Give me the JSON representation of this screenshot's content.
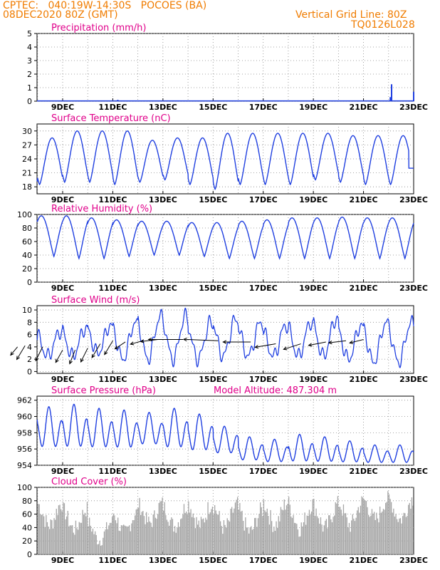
{
  "header": {
    "line1": "CPTEC:   040:19W-14:30S   POCOES (BA)",
    "line2": "08DEC2020 80Z (GMT)",
    "right1": "Vertical Grid Line: 80Z",
    "right2": "TQ0126L028",
    "color": "#f07c00"
  },
  "colors": {
    "title": "#e0008a",
    "series": "#1f3fe0",
    "cloud": "#a6a6a6",
    "vector": "#000000"
  },
  "chart_data": [
    {
      "type": "bar",
      "title": "Precipitation (mm/h)",
      "ylim": [
        0,
        5
      ],
      "yticks": [
        "0",
        "1",
        "2",
        "3",
        "4",
        "5"
      ],
      "xticks": [
        "9DEC",
        "11DEC",
        "13DEC",
        "15DEC",
        "17DEC",
        "19DEC",
        "21DEC",
        "23DEC"
      ],
      "grid": true,
      "x": [
        3.2,
        3.35,
        14.07,
        14.12,
        15.0
      ],
      "values": [
        0.1,
        0.05,
        0.3,
        1.25,
        0.7
      ]
    },
    {
      "type": "line",
      "title": "Surface Temperature (nC)",
      "ylim": [
        16.5,
        31.5
      ],
      "yticks": [
        "18",
        "21",
        "24",
        "27",
        "30"
      ],
      "xticks": [
        "9DEC",
        "11DEC",
        "13DEC",
        "15DEC",
        "17DEC",
        "19DEC",
        "21DEC",
        "23DEC"
      ],
      "grid": true,
      "daily_min": [
        17.2,
        18.5,
        19.0,
        19.0,
        18.5,
        19.0,
        19.5,
        18.5,
        17.5,
        18.5,
        18.5,
        18.5,
        19.5,
        19.0,
        18.5
      ],
      "daily_max": [
        29.0,
        28.5,
        30.0,
        30.0,
        30.0,
        28.0,
        28.5,
        28.5,
        29.5,
        29.5,
        29.5,
        29.5,
        29.5,
        29.0,
        29.0
      ],
      "end_value": 22.0
    },
    {
      "type": "line",
      "title": "Relative Humidity (%)",
      "ylim": [
        0,
        100
      ],
      "yticks": [
        "0",
        "20",
        "40",
        "60",
        "80",
        "100"
      ],
      "xticks": [
        "9DEC",
        "11DEC",
        "13DEC",
        "15DEC",
        "17DEC",
        "19DEC",
        "21DEC",
        "23DEC"
      ],
      "grid": true,
      "daily_max": [
        100,
        98,
        98,
        95,
        92,
        90,
        90,
        88,
        88,
        90,
        92,
        95,
        95,
        96,
        95
      ],
      "daily_min": [
        35,
        38,
        35,
        35,
        38,
        40,
        40,
        38,
        35,
        35,
        35,
        35,
        35,
        35,
        35
      ],
      "end_value": 85
    },
    {
      "type": "line",
      "title": "Surface Wind (m/s)",
      "ylim": [
        -0.3,
        10.7
      ],
      "yticks": [
        "0",
        "2",
        "4",
        "6",
        "8",
        "10"
      ],
      "xticks": [
        "9DEC",
        "11DEC",
        "13DEC",
        "15DEC",
        "17DEC",
        "19DEC",
        "21DEC",
        "23DEC"
      ],
      "grid": true,
      "daily_max": [
        6.0,
        6.5,
        7.0,
        7.5,
        8.0,
        9.0,
        9.0,
        8.0,
        8.5,
        8.0,
        7.5,
        8.0,
        8.5,
        7.5,
        8.0
      ],
      "daily_min": [
        1.5,
        2.5,
        2.5,
        3.0,
        2.0,
        2.0,
        2.0,
        2.0,
        2.5,
        2.5,
        2.5,
        2.5,
        2.5,
        2.0,
        1.5
      ],
      "vectors": {
        "x": [
          0.2,
          0.5,
          1.2,
          2.0,
          2.5,
          3.0,
          3.5,
          4.0,
          4.5,
          5.2,
          5.8,
          6.8,
          8.2,
          9.5,
          10.5,
          11.5,
          12.5,
          13.3,
          14.0
        ],
        "y": [
          4.0,
          4.2,
          4.0,
          3.5,
          3.5,
          3.8,
          4.5,
          5.0,
          4.8,
          5.0,
          5.2,
          5.2,
          5.0,
          4.8,
          4.5,
          4.5,
          4.8,
          5.0,
          5.2
        ],
        "u": [
          -1.0,
          -1.2,
          -1.0,
          -1.0,
          -0.8,
          -1.0,
          -1.2,
          -1.2,
          -1.5,
          -1.8,
          -2.5,
          -5.0,
          -5.0,
          -4.0,
          -3.0,
          -2.5,
          -2.5,
          -2.5,
          -2.0
        ],
        "v": [
          -1.2,
          -2.0,
          -2.0,
          -1.8,
          -2.0,
          -2.0,
          -2.0,
          -2.0,
          -1.0,
          -0.5,
          -0.3,
          0.0,
          0.2,
          0.0,
          -0.5,
          -0.8,
          -0.5,
          -0.3,
          -0.5
        ]
      }
    },
    {
      "type": "line",
      "title": "Surface Pressure (hPa)",
      "subtitle": "Model Altitude: 487.304 m",
      "ylim": [
        954,
        962.5
      ],
      "yticks": [
        "954",
        "956",
        "958",
        "960",
        "962"
      ],
      "xticks": [
        "9DEC",
        "11DEC",
        "13DEC",
        "15DEC",
        "17DEC",
        "19DEC",
        "21DEC",
        "23DEC"
      ],
      "grid": true,
      "daily_high": [
        961.3,
        961.2,
        961.5,
        961.0,
        960.8,
        960.5,
        961.0,
        960.3,
        958.8,
        957.5,
        957.2,
        957.8,
        957.5,
        957.0,
        956.5
      ],
      "daily_low": [
        956.0,
        955.5,
        955.5,
        955.5,
        955.5,
        956.0,
        955.5,
        955.2,
        955.0,
        954.2,
        954.0,
        954.0,
        954.0,
        954.0,
        954.0
      ],
      "end_value": 956.0
    },
    {
      "type": "bar",
      "title": "Cloud Cover (%)",
      "ylim": [
        0,
        100
      ],
      "yticks": [
        "0",
        "20",
        "40",
        "60",
        "80",
        "100"
      ],
      "xticks": [
        "9DEC",
        "11DEC",
        "13DEC",
        "15DEC",
        "17DEC",
        "19DEC",
        "21DEC",
        "23DEC"
      ],
      "grid": true,
      "daily_high": [
        98,
        90,
        80,
        60,
        75,
        88,
        85,
        90,
        88,
        80,
        92,
        90,
        88,
        92,
        95
      ],
      "daily_low": [
        40,
        30,
        25,
        10,
        20,
        35,
        30,
        30,
        25,
        20,
        30,
        25,
        25,
        30,
        40
      ]
    }
  ]
}
